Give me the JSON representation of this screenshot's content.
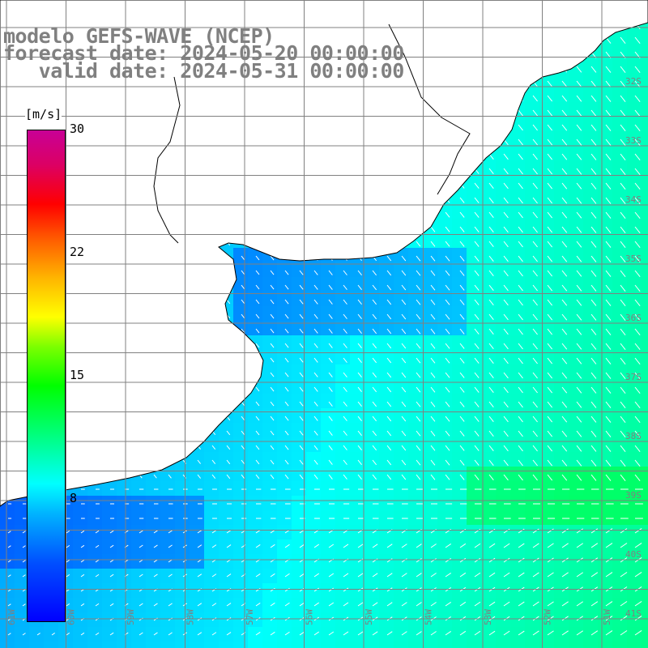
{
  "title": {
    "line1": "modelo GEFS-WAVE (NCEP)",
    "line2": "forecast date: 2024-05-20 00:00:00",
    "line3": "   valid date: 2024-05-31 00:00:00"
  },
  "colorbar": {
    "unit": "[m/s]",
    "ticks": [
      "30",
      "22",
      "15",
      "8"
    ],
    "tick_values": [
      30,
      22,
      15,
      8
    ],
    "range": [
      0,
      30
    ],
    "colors": [
      "#0000ff",
      "#00b4ff",
      "#00ffff",
      "#00ff00",
      "#ffff00",
      "#ff5a00",
      "#ff0000",
      "#c80096"
    ]
  },
  "grid": {
    "lat_labels": [
      "32S",
      "33S",
      "34S",
      "35S",
      "36S",
      "37S",
      "38S",
      "39S",
      "40S",
      "41S"
    ],
    "lon_labels": [
      "61W",
      "60W",
      "59W",
      "58W",
      "57W",
      "56W",
      "55W",
      "54W",
      "53W",
      "52W",
      "51W"
    ]
  },
  "colors": {
    "land": "#ffffff",
    "coast": "#000000",
    "grid_line": "#808080",
    "arrow": "#ffffff"
  }
}
